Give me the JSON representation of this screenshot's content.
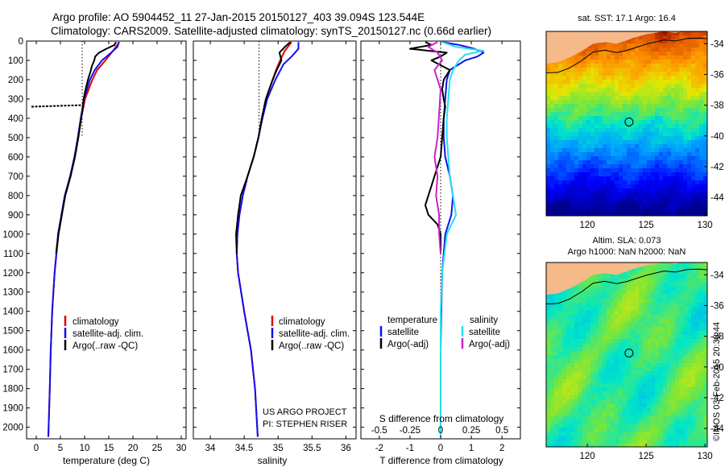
{
  "header": {
    "line1": "Argo profile: AO 5904452_11 27-Jan-2015 20150127_403 39.094S 123.544E",
    "line2": "Climatology: CARS2009. Satellite-adjusted climatology: synTS_20150127.nc (0.66d earlier)"
  },
  "credit": "©IMOS 03-Feb-2015 20:38:44",
  "colors": {
    "climatology": "#e00000",
    "satellite": "#1010ee",
    "argo": "#000000",
    "sat_salinity": "#22e0ee",
    "argo_salinity": "#cc22cc",
    "land": "#f5b98a"
  },
  "chart_data": [
    {
      "type": "line",
      "xlabel": "temperature (deg C)",
      "ylabel": "",
      "xlim": [
        -2,
        31
      ],
      "ylim": [
        2060,
        0
      ],
      "x_ticks": [
        0,
        5,
        10,
        15,
        20,
        25,
        30
      ],
      "y_ticks": [
        0,
        100,
        200,
        300,
        400,
        500,
        600,
        700,
        800,
        900,
        1000,
        1100,
        1200,
        1300,
        1400,
        1500,
        1600,
        1700,
        1800,
        1900,
        2000
      ],
      "ref_line_x": 9.5,
      "legend": [
        "climatology",
        "satellite-adj. clim.",
        "Argo(..raw -QC)"
      ],
      "series": [
        {
          "name": "climatology",
          "depth": [
            5,
            50,
            100,
            150,
            200,
            300,
            400,
            500,
            600,
            700,
            800,
            900,
            1000,
            1200,
            1400,
            1600,
            1800,
            2050
          ],
          "values": [
            17.2,
            15.9,
            14.3,
            12.6,
            11.6,
            10.1,
            9.3,
            8.7,
            8.0,
            7.1,
            6.0,
            5.3,
            4.6,
            3.8,
            3.3,
            3.0,
            2.8,
            2.5
          ]
        },
        {
          "name": "satellite-adj. clim.",
          "depth": [
            5,
            30,
            60,
            100,
            150,
            200,
            300,
            400,
            500,
            600,
            700,
            800,
            900,
            1000,
            1200,
            1400,
            1600,
            1800,
            2050
          ],
          "values": [
            17.1,
            16.8,
            15.5,
            13.6,
            12.1,
            11.1,
            9.9,
            9.2,
            8.6,
            7.9,
            7.0,
            5.9,
            5.2,
            4.5,
            3.8,
            3.3,
            3.0,
            2.8,
            2.5
          ]
        },
        {
          "name": "Argo(..raw -QC)",
          "depth": [
            5,
            20,
            40,
            60,
            80,
            100,
            130,
            160,
            200,
            250,
            300,
            330,
            400,
            500,
            600,
            700,
            800,
            900,
            1000,
            1100
          ],
          "values": [
            16.5,
            16.2,
            14.5,
            13.0,
            12.2,
            12.0,
            11.5,
            11.2,
            10.7,
            10.2,
            9.8,
            9.7,
            9.3,
            8.7,
            8.0,
            7.1,
            6.0,
            5.3,
            4.6,
            4.1
          ]
        }
      ],
      "spike": {
        "depth": 340,
        "from": -1.0,
        "to": 9.6
      }
    },
    {
      "type": "line",
      "xlabel": "salinity",
      "ylabel": "",
      "xlim": [
        33.75,
        36.15
      ],
      "ylim": [
        2060,
        0
      ],
      "x_ticks": [
        34,
        34.5,
        35,
        35.5,
        36
      ],
      "ref_line_x": 34.72,
      "legend": [
        "climatology",
        "satellite-adj. clim.",
        "Argo(..raw -QC)"
      ],
      "annotation": [
        "US ARGO PROJECT",
        "PI: STEPHEN RISER"
      ],
      "series": [
        {
          "name": "climatology",
          "depth": [
            5,
            50,
            100,
            150,
            200,
            300,
            400,
            500,
            600,
            700,
            800,
            900,
            1000,
            1100,
            1200,
            1400,
            1600,
            1800,
            2050
          ],
          "values": [
            35.2,
            35.1,
            35.03,
            34.97,
            34.92,
            34.82,
            34.76,
            34.71,
            34.64,
            34.55,
            34.48,
            34.43,
            34.4,
            34.39,
            34.41,
            34.5,
            34.6,
            34.66,
            34.7
          ]
        },
        {
          "name": "satellite-adj. clim.",
          "depth": [
            5,
            40,
            80,
            120,
            200,
            300,
            400,
            500,
            600,
            700,
            800,
            900,
            1000,
            1100,
            1200,
            1400,
            1600,
            1800,
            2050
          ],
          "values": [
            35.3,
            35.3,
            35.2,
            35.08,
            34.96,
            34.84,
            34.77,
            34.71,
            34.64,
            34.55,
            34.48,
            34.43,
            34.4,
            34.39,
            34.41,
            34.5,
            34.6,
            34.66,
            34.7
          ]
        },
        {
          "name": "Argo(..raw -QC)",
          "depth": [
            5,
            30,
            60,
            100,
            150,
            200,
            300,
            400,
            500,
            600,
            700,
            800,
            900,
            1000,
            1100
          ],
          "values": [
            35.18,
            35.1,
            35.02,
            35.05,
            34.98,
            34.92,
            34.82,
            34.76,
            34.71,
            34.64,
            34.55,
            34.45,
            34.41,
            34.38,
            34.39
          ]
        }
      ]
    },
    {
      "type": "line",
      "xlabel": "T difference from climatology",
      "title": "S difference from climatology",
      "ylabel": "",
      "xlim": [
        -2.6,
        2.6
      ],
      "ylim": [
        2060,
        0
      ],
      "x_ticks": [
        -2,
        -1,
        0,
        1,
        2
      ],
      "top_ticks": [
        "-0.5",
        "-0.25",
        "0",
        "0.25",
        "0.5"
      ],
      "legend_titles": [
        "temperature",
        "salinity"
      ],
      "legend": [
        "satellite",
        "Argo(-adj)",
        "satellite",
        "Argo(-adj)"
      ],
      "series": [
        {
          "name": "satellite",
          "depth": [
            5,
            20,
            40,
            60,
            80,
            100,
            150,
            200,
            300,
            400,
            500,
            600,
            700,
            800,
            900,
            1000,
            1200,
            1400,
            1600,
            1800,
            2050
          ],
          "values": [
            0.05,
            0.6,
            1.1,
            1.4,
            1.2,
            0.8,
            0.3,
            0.2,
            0.15,
            0.1,
            0.1,
            0.15,
            0.3,
            0.4,
            0.35,
            0.15,
            0.05,
            0.02,
            0.0,
            0.0,
            0.0
          ]
        },
        {
          "name": "Argo(-adj)",
          "depth": [
            5,
            20,
            40,
            60,
            80,
            100,
            150,
            200,
            250,
            300,
            340,
            400,
            500,
            600,
            700,
            800,
            850,
            900,
            950,
            1000,
            1100
          ],
          "values": [
            -0.5,
            -0.3,
            -1.0,
            0.2,
            0.0,
            -0.3,
            0.3,
            0.1,
            0.05,
            0.1,
            0.15,
            0.1,
            0.05,
            0.0,
            -0.2,
            -0.4,
            -0.5,
            -0.4,
            -0.1,
            0.0,
            0.0
          ]
        },
        {
          "name": "satellite (salinity)",
          "depth": [
            5,
            30,
            50,
            70,
            100,
            150,
            200,
            300,
            400,
            500,
            600,
            700,
            800,
            900,
            1000,
            1200,
            1400,
            1600,
            1800,
            2050
          ],
          "values": [
            0.05,
            0.5,
            1.4,
            0.8,
            0.6,
            0.4,
            0.3,
            0.25,
            0.2,
            0.2,
            0.25,
            0.3,
            0.4,
            0.5,
            0.2,
            0.05,
            0.0,
            0.0,
            0.0,
            0.0
          ]
        },
        {
          "name": "Argo(-adj) (salinity)",
          "depth": [
            5,
            30,
            60,
            100,
            150,
            200,
            250,
            500,
            600,
            700,
            800,
            900,
            1000,
            1100
          ],
          "values": [
            -0.1,
            -0.4,
            -0.1,
            0.05,
            -0.2,
            -0.1,
            0.0,
            -0.1,
            -0.2,
            -0.1,
            -0.15,
            -0.05,
            -0.05,
            0.0
          ]
        }
      ]
    },
    {
      "type": "heatmap",
      "title": "sat. SST: 17.1  Argo: 16.4",
      "x_ticks": [
        120,
        125,
        130
      ],
      "y_ticks": [
        -34,
        -36,
        -38,
        -40,
        -42,
        -44
      ],
      "xlim": [
        116.5,
        130.2
      ],
      "ylim": [
        -45.2,
        -33.2
      ],
      "marker": {
        "lon": 123.544,
        "lat": -39.094
      }
    },
    {
      "type": "heatmap",
      "title_lines": [
        "Altim. SLA: 0.073",
        "Argo h1000: NaN h2000: NaN"
      ],
      "x_ticks": [
        120,
        125,
        130
      ],
      "y_ticks": [
        -34,
        -36,
        -38,
        -40,
        -42,
        -44
      ],
      "xlim": [
        116.5,
        130.2
      ],
      "ylim": [
        -45.2,
        -33.2
      ],
      "marker": {
        "lon": 123.544,
        "lat": -39.094
      }
    }
  ]
}
